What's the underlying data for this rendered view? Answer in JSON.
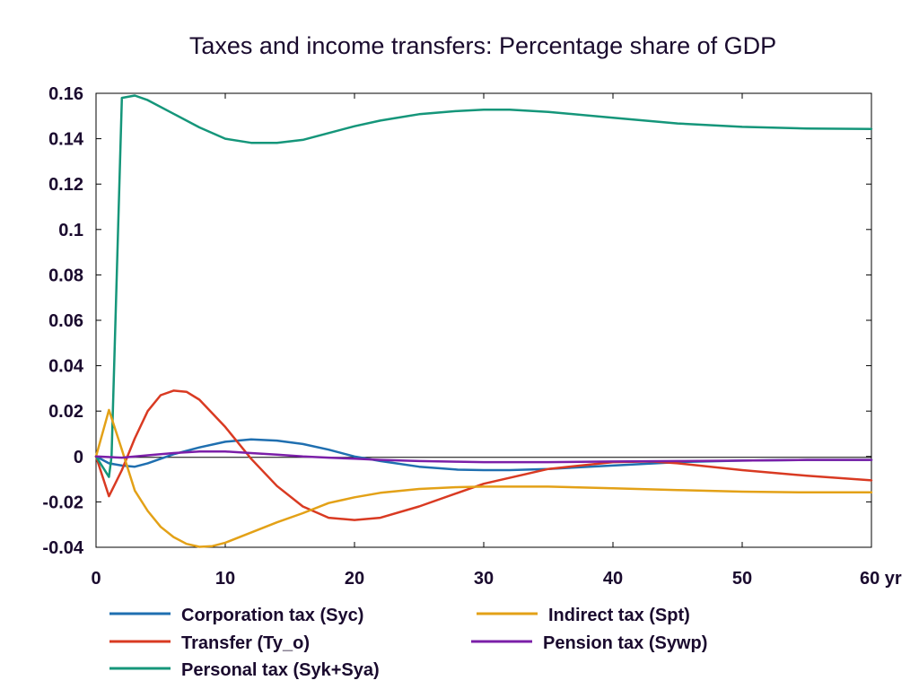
{
  "chart_data": {
    "type": "line",
    "title": "Taxes and income transfers: Percentage share of GDP",
    "xlabel": "",
    "ylabel": "",
    "xlim": [
      0,
      60
    ],
    "ylim": [
      -0.04,
      0.16
    ],
    "x_ticks": [
      0,
      10,
      20,
      30,
      40,
      50,
      60
    ],
    "x_tick_labels": [
      "0",
      "10",
      "20",
      "30",
      "40",
      "50",
      "60 yr"
    ],
    "y_ticks": [
      -0.04,
      -0.02,
      0,
      0.02,
      0.04,
      0.06,
      0.08,
      0.1,
      0.12,
      0.14,
      0.16
    ],
    "y_tick_labels": [
      "-0.04",
      "-0.02",
      "0",
      "0.02",
      "0.04",
      "0.06",
      "0.08",
      "0.1",
      "0.12",
      "0.14",
      "0.16"
    ],
    "grid": false,
    "legend_position": "bottom",
    "series": [
      {
        "name": "Corporation tax (Syc)",
        "color": "#1f6fb0",
        "x": [
          0,
          1,
          2,
          3,
          4,
          6,
          8,
          10,
          12,
          14,
          16,
          18,
          20,
          22,
          25,
          28,
          30,
          32,
          35,
          40,
          45,
          50,
          55,
          60
        ],
        "y": [
          0,
          -0.003,
          -0.004,
          -0.0045,
          -0.003,
          0.001,
          0.004,
          0.0065,
          0.0075,
          0.007,
          0.0055,
          0.003,
          0.0,
          -0.002,
          -0.0045,
          -0.0058,
          -0.006,
          -0.006,
          -0.0055,
          -0.004,
          -0.0025,
          -0.0018,
          -0.0015,
          -0.0015
        ]
      },
      {
        "name": "Transfer (Ty_o)",
        "color": "#d93a22",
        "x": [
          0,
          1,
          2,
          3,
          4,
          5,
          6,
          7,
          8,
          10,
          12,
          14,
          16,
          18,
          20,
          22,
          25,
          28,
          30,
          35,
          40,
          43,
          45,
          50,
          55,
          60
        ],
        "y": [
          0,
          -0.0175,
          -0.006,
          0.008,
          0.02,
          0.027,
          0.029,
          0.0285,
          0.025,
          0.013,
          -0.001,
          -0.013,
          -0.022,
          -0.027,
          -0.028,
          -0.027,
          -0.022,
          -0.016,
          -0.012,
          -0.0055,
          -0.0025,
          -0.0022,
          -0.003,
          -0.006,
          -0.0085,
          -0.0105
        ]
      },
      {
        "name": "Personal tax (Syk+Sya)",
        "color": "#15967a",
        "x": [
          0,
          1,
          1.2,
          2,
          3,
          4,
          6,
          8,
          10,
          12,
          14,
          16,
          18,
          20,
          22,
          25,
          28,
          30,
          32,
          35,
          40,
          45,
          50,
          55,
          60
        ],
        "y": [
          0,
          -0.009,
          0.0,
          0.158,
          0.159,
          0.157,
          0.151,
          0.145,
          0.14,
          0.1382,
          0.1382,
          0.1395,
          0.1425,
          0.1455,
          0.148,
          0.1508,
          0.1522,
          0.1528,
          0.1528,
          0.1518,
          0.1492,
          0.1467,
          0.1452,
          0.1445,
          0.1443
        ]
      },
      {
        "name": "Indirect tax (Spt)",
        "color": "#e3a117",
        "x": [
          0,
          1,
          2,
          3,
          4,
          5,
          6,
          7,
          8,
          9,
          10,
          12,
          14,
          16,
          18,
          20,
          22,
          25,
          28,
          30,
          35,
          40,
          45,
          50,
          55,
          60
        ],
        "y": [
          0,
          0.0205,
          0.003,
          -0.015,
          -0.024,
          -0.031,
          -0.0355,
          -0.0385,
          -0.0398,
          -0.0395,
          -0.038,
          -0.0335,
          -0.029,
          -0.025,
          -0.0205,
          -0.018,
          -0.016,
          -0.0143,
          -0.0135,
          -0.0133,
          -0.0133,
          -0.014,
          -0.0148,
          -0.0155,
          -0.0158,
          -0.0158
        ]
      },
      {
        "name": "Pension tax (Sywp)",
        "color": "#7b1fa8",
        "x": [
          0,
          2,
          4,
          6,
          8,
          10,
          12,
          14,
          16,
          18,
          20,
          22,
          25,
          28,
          30,
          35,
          40,
          45,
          50,
          55,
          60
        ],
        "y": [
          0,
          -0.0005,
          0.0005,
          0.0015,
          0.0022,
          0.0022,
          0.0015,
          0.0008,
          0.0,
          -0.0005,
          -0.001,
          -0.0015,
          -0.002,
          -0.0023,
          -0.0025,
          -0.0025,
          -0.0022,
          -0.002,
          -0.0018,
          -0.0015,
          -0.0015
        ]
      }
    ]
  }
}
